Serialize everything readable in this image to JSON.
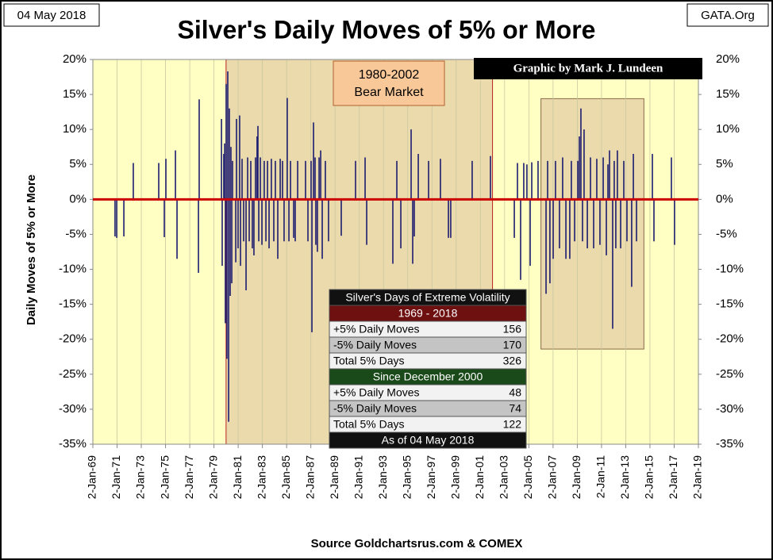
{
  "chart_data": {
    "type": "spike",
    "title": "Silver's Daily Moves of 5% or More",
    "date_label": "04 May 2018",
    "site": "GATA.Org",
    "credit": "Graphic by Mark J. Lundeen",
    "y_label": "Daily Moves of 5% or More",
    "source": "Source Goldchartsrus.com & COMEX",
    "color": "#1c1c70",
    "zero_line_color": "#cc0000",
    "grid": "x",
    "ylim": [
      -35,
      20
    ],
    "yticks": [
      {
        "value": 20,
        "label": "20%"
      },
      {
        "value": 15,
        "label": "15%"
      },
      {
        "value": 10,
        "label": "10%"
      },
      {
        "value": 5,
        "label": "5%"
      },
      {
        "value": 0,
        "label": "0%"
      },
      {
        "value": -5,
        "label": "-5%"
      },
      {
        "value": -10,
        "label": "-10%"
      },
      {
        "value": -15,
        "label": "-15%"
      },
      {
        "value": -20,
        "label": "-20%"
      },
      {
        "value": -25,
        "label": "-25%"
      },
      {
        "value": -30,
        "label": "-30%"
      },
      {
        "value": -35,
        "label": "-35%"
      }
    ],
    "xlim": [
      1969,
      2019
    ],
    "xticks": [
      {
        "value": 1969,
        "label": "2-Jan-69"
      },
      {
        "value": 1971,
        "label": "2-Jan-71"
      },
      {
        "value": 1973,
        "label": "2-Jan-73"
      },
      {
        "value": 1975,
        "label": "2-Jan-75"
      },
      {
        "value": 1977,
        "label": "2-Jan-77"
      },
      {
        "value": 1979,
        "label": "2-Jan-79"
      },
      {
        "value": 1981,
        "label": "2-Jan-81"
      },
      {
        "value": 1983,
        "label": "2-Jan-83"
      },
      {
        "value": 1985,
        "label": "2-Jan-85"
      },
      {
        "value": 1987,
        "label": "2-Jan-87"
      },
      {
        "value": 1989,
        "label": "2-Jan-89"
      },
      {
        "value": 1991,
        "label": "2-Jan-91"
      },
      {
        "value": 1993,
        "label": "2-Jan-93"
      },
      {
        "value": 1995,
        "label": "2-Jan-95"
      },
      {
        "value": 1997,
        "label": "2-Jan-97"
      },
      {
        "value": 1999,
        "label": "2-Jan-99"
      },
      {
        "value": 2001,
        "label": "2-Jan-01"
      },
      {
        "value": 2003,
        "label": "2-Jan-03"
      },
      {
        "value": 2005,
        "label": "2-Jan-05"
      },
      {
        "value": 2007,
        "label": "2-Jan-07"
      },
      {
        "value": 2009,
        "label": "2-Jan-09"
      },
      {
        "value": 2011,
        "label": "2-Jan-11"
      },
      {
        "value": 2013,
        "label": "2-Jan-13"
      },
      {
        "value": 2015,
        "label": "2-Jan-15"
      },
      {
        "value": 2017,
        "label": "2-Jan-17"
      },
      {
        "value": 2019,
        "label": "2-Jan-19"
      }
    ],
    "regions": [
      {
        "x": [
          1980,
          2002
        ],
        "label": [
          "1980-2002",
          "Bear Market"
        ]
      },
      {
        "x": [
          2006,
          2014.5
        ],
        "y": [
          14.4,
          -21.4
        ]
      }
    ],
    "x": [
      1970.83,
      1970.97,
      1971.56,
      1972.34,
      1974.44,
      1974.9,
      1975.03,
      1975.82,
      1975.95,
      1977.72,
      1977.78,
      1979.62,
      1979.68,
      1979.81,
      1979.88,
      1979.94,
      1980.01,
      1980.07,
      1980.14,
      1980.21,
      1980.27,
      1980.34,
      1980.4,
      1980.47,
      1980.53,
      1980.8,
      1980.86,
      1980.99,
      1981.12,
      1981.19,
      1981.32,
      1981.45,
      1981.65,
      1981.78,
      1981.91,
      1982.04,
      1982.17,
      1982.3,
      1982.43,
      1982.56,
      1982.63,
      1982.7,
      1982.83,
      1982.96,
      1983.15,
      1983.29,
      1983.42,
      1983.55,
      1983.74,
      1983.94,
      1984.07,
      1984.27,
      1984.47,
      1984.66,
      1984.79,
      1985.05,
      1985.19,
      1985.32,
      1985.58,
      1985.71,
      1985.91,
      1986.56,
      1986.76,
      1987.02,
      1987.09,
      1987.22,
      1987.35,
      1987.41,
      1987.54,
      1987.68,
      1987.81,
      1987.94,
      1988.2,
      1988.46,
      1989.51,
      1990.69,
      1991.48,
      1991.61,
      1993.77,
      1994.1,
      1994.43,
      1995.28,
      1995.41,
      1995.54,
      1995.87,
      1996.72,
      1997.7,
      1998.36,
      1998.55,
      2000.32,
      2001.83,
      2003.8,
      2004.06,
      2004.32,
      2004.58,
      2004.84,
      2005.11,
      2005.24,
      2005.76,
      2006.42,
      2006.55,
      2006.74,
      2007.01,
      2007.2,
      2007.53,
      2007.79,
      2008.06,
      2008.38,
      2008.51,
      2008.78,
      2009.04,
      2009.17,
      2009.3,
      2009.43,
      2009.56,
      2009.83,
      2010.09,
      2010.35,
      2010.61,
      2010.87,
      2011.14,
      2011.4,
      2011.53,
      2011.66,
      2011.92,
      2012.05,
      2012.18,
      2012.31,
      2012.58,
      2012.84,
      2013.1,
      2013.49,
      2013.63,
      2013.89,
      2015.2,
      2015.33,
      2016.77,
      2017.03
    ],
    "values": [
      -5.3,
      -5.5,
      -5.3,
      5.2,
      5.2,
      -5.4,
      5.8,
      7,
      -8.5,
      -10.5,
      14.3,
      11.5,
      -9.5,
      6.5,
      8,
      -17.7,
      16.5,
      -22.8,
      18.3,
      -31.8,
      13,
      -13.8,
      7.5,
      -12,
      5.5,
      -9,
      11.5,
      -7,
      12,
      -9.5,
      5.8,
      -6,
      -13,
      6,
      -6,
      5.5,
      -7,
      -8,
      6,
      9,
      10.5,
      -6,
      6,
      -6.5,
      5.5,
      -6,
      5.5,
      -7,
      5.8,
      -6,
      5.5,
      -8.5,
      5.8,
      5.5,
      -6,
      14.5,
      -6,
      5.5,
      -5.5,
      -6,
      5.5,
      5.5,
      -6,
      5.5,
      -19,
      11,
      6,
      -6.5,
      -7.5,
      6,
      7,
      -8.5,
      5.5,
      -6,
      -5.2,
      5.5,
      6,
      -6.5,
      -9.2,
      5.5,
      -7,
      10,
      -9.2,
      -5.3,
      6.5,
      5.5,
      5.8,
      -5.5,
      -5.5,
      5.5,
      6.2,
      -5.5,
      5.2,
      -11.5,
      5.2,
      5,
      -9.5,
      5.3,
      5.5,
      -13.5,
      5.5,
      -12,
      -8.5,
      5.5,
      -7,
      6,
      -8.5,
      -8.5,
      5.5,
      -6,
      5.5,
      9,
      13,
      -6,
      10,
      -7,
      6,
      -7,
      5.8,
      -6.5,
      6,
      -8,
      5,
      7,
      -18.5,
      5.5,
      -7,
      7,
      -7,
      5.5,
      -6,
      -12.5,
      6.5,
      -6,
      6.5,
      -6,
      6,
      -6.5
    ],
    "table": {
      "title": "Silver's Days of Extreme Volatility",
      "sections": [
        {
          "heading": "1969 - 2018",
          "rows": [
            [
              "+5% Daily Moves",
              "156"
            ],
            [
              "-5% Daily Moves",
              "170"
            ],
            [
              "Total 5% Days",
              "326"
            ]
          ]
        },
        {
          "heading": "Since December 2000",
          "rows": [
            [
              "+5% Daily Moves",
              "48"
            ],
            [
              "-5% Daily Moves",
              "74"
            ],
            [
              "Total 5% Days",
              "122"
            ]
          ]
        }
      ],
      "footer": "As of 04 May 2018"
    }
  }
}
